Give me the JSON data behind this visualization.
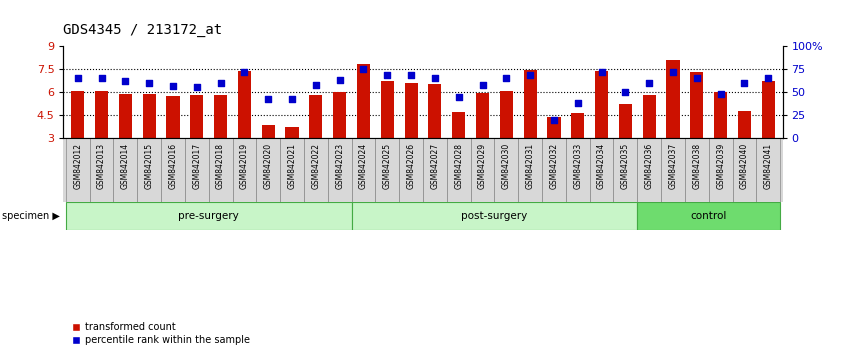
{
  "title": "GDS4345 / 213172_at",
  "samples": [
    "GSM842012",
    "GSM842013",
    "GSM842014",
    "GSM842015",
    "GSM842016",
    "GSM842017",
    "GSM842018",
    "GSM842019",
    "GSM842020",
    "GSM842021",
    "GSM842022",
    "GSM842023",
    "GSM842024",
    "GSM842025",
    "GSM842026",
    "GSM842027",
    "GSM842028",
    "GSM842029",
    "GSM842030",
    "GSM842031",
    "GSM842032",
    "GSM842033",
    "GSM842034",
    "GSM842035",
    "GSM842036",
    "GSM842037",
    "GSM842038",
    "GSM842039",
    "GSM842040",
    "GSM842041"
  ],
  "bar_values": [
    6.1,
    6.05,
    5.9,
    5.88,
    5.72,
    5.78,
    5.82,
    7.35,
    3.85,
    3.75,
    5.8,
    6.0,
    7.85,
    6.72,
    6.6,
    6.55,
    4.72,
    5.92,
    6.1,
    7.45,
    4.35,
    4.65,
    7.35,
    5.25,
    5.78,
    8.1,
    7.28,
    6.0,
    4.75,
    6.7
  ],
  "percentile_values": [
    65,
    65,
    62,
    60,
    57,
    55,
    60,
    72,
    42,
    42,
    58,
    63,
    75,
    68,
    68,
    65,
    45,
    58,
    65,
    68,
    20,
    38,
    72,
    50,
    60,
    72,
    65,
    48,
    60,
    65
  ],
  "groups": [
    {
      "label": "pre-surgery",
      "start": 0,
      "end": 12
    },
    {
      "label": "post-surgery",
      "start": 12,
      "end": 24
    },
    {
      "label": "control",
      "start": 24,
      "end": 30
    }
  ],
  "group_colors": [
    "#c8f5c8",
    "#c8f5c8",
    "#6edc6e"
  ],
  "bar_color": "#cc1100",
  "dot_color": "#0000cc",
  "bar_bottom": 3.0,
  "ylim_left": [
    3.0,
    9.0
  ],
  "ylim_right": [
    0,
    100
  ],
  "yticks_left": [
    3.0,
    4.5,
    6.0,
    7.5,
    9.0
  ],
  "ytick_labels_left": [
    "3",
    "4.5",
    "6",
    "7.5",
    "9"
  ],
  "yticks_right": [
    0,
    25,
    50,
    75,
    100
  ],
  "ytick_labels_right": [
    "0",
    "25",
    "50",
    "75",
    "100%"
  ],
  "hlines": [
    4.5,
    6.0,
    7.5
  ],
  "title_fontsize": 10,
  "legend_labels": [
    "transformed count",
    "percentile rank within the sample"
  ],
  "specimen_label": "specimen"
}
